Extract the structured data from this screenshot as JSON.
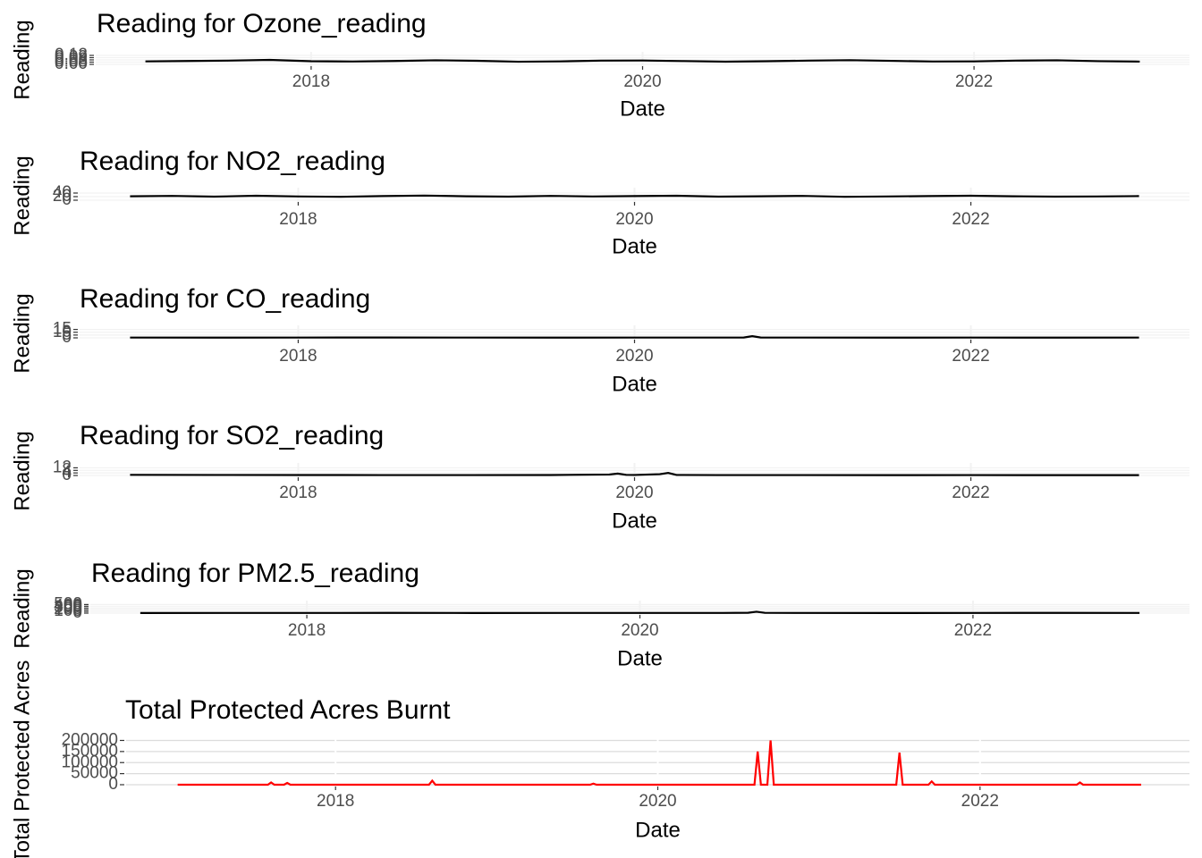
{
  "chart_data": [
    {
      "type": "line",
      "title": "Reading for Ozone_reading",
      "x_label": "Date",
      "y_label": "Reading",
      "color": "#000000",
      "x": [
        2017,
        2017.25,
        2017.5,
        2017.75,
        2018,
        2018.25,
        2018.5,
        2018.75,
        2019,
        2019.25,
        2019.5,
        2019.75,
        2020,
        2020.25,
        2020.5,
        2020.75,
        2021,
        2021.25,
        2021.5,
        2021.75,
        2022,
        2022.25,
        2022.5,
        2022.75,
        2023
      ],
      "values": [
        0.04,
        0.045,
        0.05,
        0.06,
        0.042,
        0.038,
        0.045,
        0.055,
        0.048,
        0.035,
        0.04,
        0.05,
        0.052,
        0.044,
        0.036,
        0.042,
        0.05,
        0.056,
        0.047,
        0.038,
        0.04,
        0.05,
        0.055,
        0.043,
        0.037
      ],
      "xlim": [
        2016.7,
        2023.3
      ],
      "xticks": [
        2018,
        2020,
        2022
      ],
      "ylim": [
        0,
        0.12
      ],
      "yticks": [
        {
          "value": 0,
          "label": "0.00"
        },
        0.03,
        0.06,
        0.09,
        0.12
      ],
      "grid": true
    },
    {
      "type": "line",
      "title": "Reading for NO2_reading",
      "x_label": "Date",
      "y_label": "Reading",
      "color": "#000000",
      "x": [
        2017,
        2017.25,
        2017.5,
        2017.75,
        2018,
        2018.25,
        2018.5,
        2018.75,
        2019,
        2019.25,
        2019.5,
        2019.75,
        2020,
        2020.25,
        2020.5,
        2020.75,
        2021,
        2021.25,
        2021.5,
        2021.75,
        2022,
        2022.25,
        2022.5,
        2022.75,
        2023
      ],
      "values": [
        22,
        24,
        20,
        25,
        21,
        19,
        23,
        26,
        22,
        20,
        24,
        21,
        23,
        25,
        20,
        22,
        24,
        19,
        21,
        23,
        25,
        22,
        20,
        21,
        23
      ],
      "xlim": [
        2016.7,
        2023.3
      ],
      "xticks": [
        2018,
        2020,
        2022
      ],
      "ylim": [
        0,
        50
      ],
      "yticks": [
        0,
        20,
        40
      ],
      "grid": true
    },
    {
      "type": "line",
      "title": "Reading for CO_reading",
      "x_label": "Date",
      "y_label": "Reading",
      "color": "#000000",
      "x": [
        2017,
        2017.5,
        2018,
        2018.5,
        2019,
        2019.5,
        2020,
        2020.5,
        2020.65,
        2020.7,
        2020.75,
        2021,
        2021.5,
        2022,
        2022.5,
        2023
      ],
      "values": [
        0.5,
        0.4,
        0.5,
        0.6,
        0.5,
        0.4,
        0.5,
        0.5,
        0.6,
        3,
        0.6,
        0.5,
        0.4,
        0.5,
        0.4,
        0.5
      ],
      "xlim": [
        2016.7,
        2023.3
      ],
      "xticks": [
        2018,
        2020,
        2022
      ],
      "ylim": [
        0,
        16
      ],
      "yticks": [
        0,
        5,
        10,
        15
      ],
      "grid": true
    },
    {
      "type": "line",
      "title": "Reading for SO2_reading",
      "x_label": "Date",
      "y_label": "Reading",
      "color": "#000000",
      "x": [
        2017,
        2017.5,
        2018,
        2018.5,
        2019,
        2019.5,
        2019.85,
        2019.9,
        2019.95,
        2020,
        2020.15,
        2020.2,
        2020.25,
        2020.5,
        2021,
        2021.5,
        2022,
        2022.5,
        2023
      ],
      "values": [
        1,
        0.8,
        0.7,
        0.6,
        0.6,
        0.7,
        1.5,
        3,
        1,
        0.8,
        2,
        4,
        0.8,
        0.6,
        0.6,
        0.5,
        0.6,
        0.5,
        0.5
      ],
      "xlim": [
        2016.7,
        2023.3
      ],
      "xticks": [
        2018,
        2020,
        2022
      ],
      "ylim": [
        0,
        14
      ],
      "yticks": [
        0,
        4,
        8,
        12
      ],
      "grid": true
    },
    {
      "type": "line",
      "title": "Reading for PM2.5_reading",
      "x_label": "Date",
      "y_label": "Reading",
      "color": "#000000",
      "x": [
        2017,
        2017.5,
        2018,
        2018.5,
        2019,
        2019.5,
        2020,
        2020.5,
        2020.65,
        2020.7,
        2020.75,
        2021,
        2021.5,
        2022,
        2022.5,
        2023
      ],
      "values": [
        8,
        10,
        9,
        12,
        8,
        10,
        9,
        11,
        20,
        80,
        15,
        9,
        8,
        10,
        12,
        9
      ],
      "xlim": [
        2016.7,
        2023.3
      ],
      "xticks": [
        2018,
        2020,
        2022
      ],
      "ylim": [
        0,
        520
      ],
      "yticks": [
        0,
        100,
        200,
        300,
        400,
        500
      ],
      "grid": true
    },
    {
      "type": "line",
      "title": "Total Protected Acres Burnt",
      "x_label": "Date",
      "y_label": "Total Protected Acres",
      "color": "#ff0000",
      "x": [
        2017.02,
        2017.58,
        2017.6,
        2017.62,
        2017.68,
        2017.7,
        2017.72,
        2018.58,
        2018.6,
        2018.62,
        2019.58,
        2019.6,
        2019.62,
        2020.6,
        2020.62,
        2020.64,
        2020.68,
        2020.7,
        2020.72,
        2021.48,
        2021.5,
        2021.52,
        2021.68,
        2021.7,
        2021.72,
        2022.6,
        2022.62,
        2022.64,
        2023
      ],
      "values": [
        0,
        0,
        10000,
        0,
        0,
        8000,
        0,
        0,
        18000,
        0,
        0,
        5000,
        0,
        0,
        150000,
        0,
        0,
        200000,
        0,
        0,
        145000,
        0,
        0,
        15000,
        0,
        0,
        10000,
        0,
        0
      ],
      "xlim": [
        2016.7,
        2023.3
      ],
      "xticks": [
        2018,
        2020,
        2022
      ],
      "ylim": [
        0,
        210000
      ],
      "yticks": [
        0,
        50000,
        100000,
        150000,
        200000
      ],
      "grid": true
    }
  ]
}
